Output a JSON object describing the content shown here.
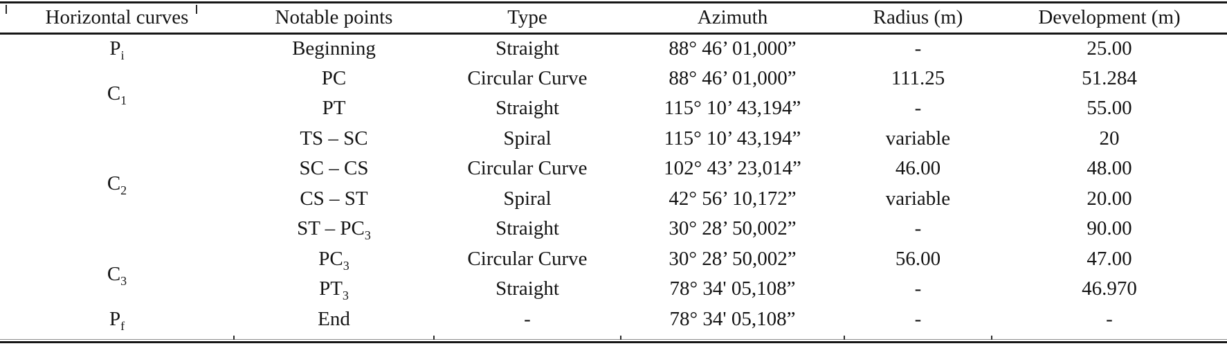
{
  "page": {
    "background_color": "#ffffff",
    "text_color": "#141414",
    "rule_color": "#161616"
  },
  "table": {
    "columns": [
      "Horizontal curves",
      "Notable points",
      "Type",
      "Azimuth",
      "Radius (m)",
      "Development (m)"
    ],
    "curve_groups": [
      {
        "label": "P",
        "sub": "i",
        "rowspan": 1
      },
      {
        "label": "C",
        "sub": "1",
        "rowspan": 2
      },
      {
        "label": "C",
        "sub": "2",
        "rowspan": 4
      },
      {
        "label": "C",
        "sub": "3",
        "rowspan": 2
      },
      {
        "label": "P",
        "sub": "f",
        "rowspan": 1
      }
    ],
    "rows": [
      {
        "point": "Beginning",
        "point_sub": "",
        "type": "Straight",
        "azimuth": "88° 46’ 01,000”",
        "radius": "-",
        "development": "25.00"
      },
      {
        "point": "PC",
        "point_sub": "",
        "type": "Circular Curve",
        "azimuth": "88° 46’ 01,000”",
        "radius": "111.25",
        "development": "51.284"
      },
      {
        "point": "PT",
        "point_sub": "",
        "type": "Straight",
        "azimuth": "115° 10’ 43,194”",
        "radius": "-",
        "development": "55.00"
      },
      {
        "point": "TS – SC",
        "point_sub": "",
        "type": "Spiral",
        "azimuth": "115° 10’ 43,194”",
        "radius": "variable",
        "development": "20"
      },
      {
        "point": "SC – CS",
        "point_sub": "",
        "type": "Circular Curve",
        "azimuth": "102° 43’ 23,014”",
        "radius": "46.00",
        "development": "48.00"
      },
      {
        "point": "CS – ST",
        "point_sub": "",
        "type": "Spiral",
        "azimuth": "42° 56’ 10,172”",
        "radius": "variable",
        "development": "20.00"
      },
      {
        "point": "ST – PC",
        "point_sub": "3",
        "type": "Straight",
        "azimuth": "30° 28’ 50,002”",
        "radius": "-",
        "development": "90.00"
      },
      {
        "point": "PC",
        "point_sub": "3",
        "type": "Circular Curve",
        "azimuth": "30° 28’ 50,002”",
        "radius": "56.00",
        "development": "47.00"
      },
      {
        "point": "PT",
        "point_sub": "3",
        "type": "Straight",
        "azimuth": "78° 34' 05,108”",
        "radius": "-",
        "development": "46.970"
      },
      {
        "point": "End",
        "point_sub": "",
        "type": "-",
        "azimuth": "78° 34' 05,108”",
        "radius": "-",
        "development": "-"
      }
    ]
  }
}
